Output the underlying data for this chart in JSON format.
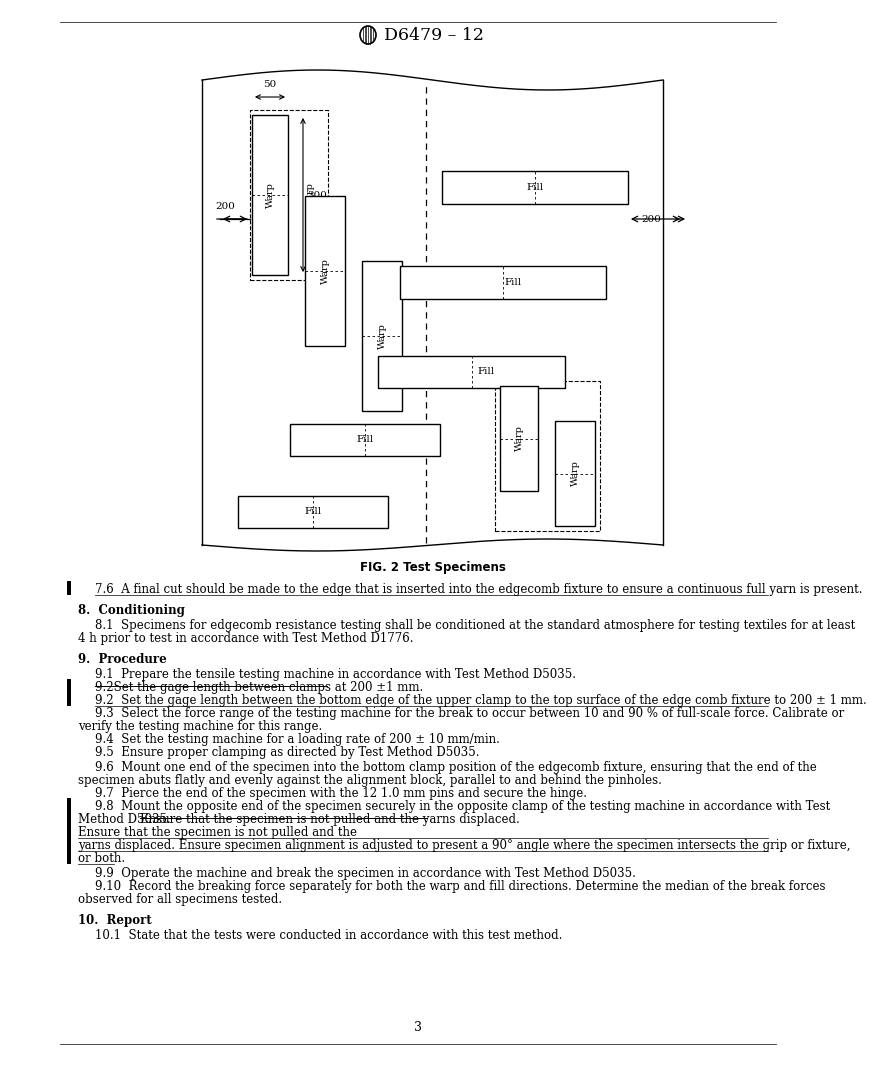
{
  "title": "D6479 – 12",
  "fig_caption": "FIG. 2 Test Specimens",
  "page_number": "3",
  "background_color": "#ffffff",
  "text_color": "#000000",
  "section_7_6_text": "7.6  A final cut should be made to the edge that is inserted into the edgecomb fixture to ensure a continuous full yarn is present.",
  "section_8_heading": "8.  Conditioning",
  "para_8_1_line1": "8.1  Specimens for edgecomb resistance testing shall be conditioned at the standard atmosphere for testing textiles for at least",
  "para_8_1_line2": "4 h prior to test in accordance with Test Method D1776.",
  "section_9_heading": "9.  Procedure",
  "para_9_1": "9.1  Prepare the tensile testing machine in accordance with Test Method D5035.",
  "para_9_2_old": "9.2Set the gage length between clamps at 200 ±1 mm.",
  "para_9_2_new": "9.2  Set the gage length between the bottom edge of the upper clamp to the top surface of the edge comb fixture to 200 ± 1 mm.",
  "para_9_3_line1": "9.3  Select the force range of the testing machine for the break to occur between 10 and 90 % of full-scale force. Calibrate or",
  "para_9_3_line2": "verify the testing machine for this range.",
  "para_9_4": "9.4  Set the testing machine for a loading rate of 200 ± 10 mm/min.",
  "para_9_5": "9.5  Ensure proper clamping as directed by Test Method D5035.",
  "para_9_6_line1": "9.6  Mount one end of the specimen into the bottom clamp position of the edgecomb fixture, ensuring that the end of the",
  "para_9_6_line2": "specimen abuts flatly and evenly against the alignment block, parallel to and behind the pinholes.",
  "para_9_7": "9.7  Pierce the end of the specimen with the 12 1.0 mm pins and secure the hinge.",
  "para_9_8_line1": "9.8  Mount the opposite end of the specimen securely in the opposite clamp of the testing machine in accordance with Test",
  "para_9_8_line2": "Method D5035.",
  "para_9_8_strike": "Ensure that the specimen is not pulled and the yarns displaced.",
  "para_9_8_sep": " . ",
  "para_9_8_new_line1": "Ensure that the specimen is not pulled and the",
  "para_9_8_new_line2": "yarns displaced. Ensure specimen alignment is adjusted to present a 90° angle where the specimen intersects the grip or fixture,",
  "para_9_8_new_line3": "or both.",
  "para_9_9": "9.9  Operate the machine and break the specimen in accordance with Test Method D5035.",
  "para_9_10_line1": "9.10  Record the breaking force separately for both the warp and fill directions. Determine the median of the break forces",
  "para_9_10_line2": "observed for all specimens tested.",
  "section_10_heading": "10.  Report",
  "para_10_1": "10.1  State that the tests were conducted in accordance with this test method."
}
